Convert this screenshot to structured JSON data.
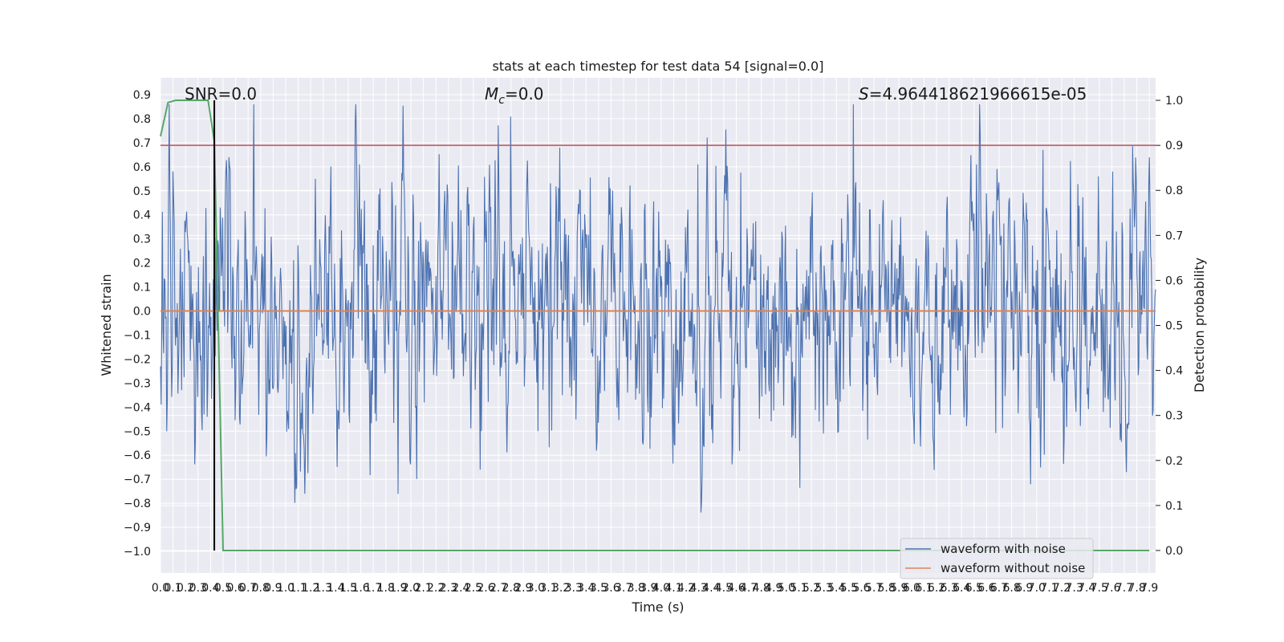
{
  "chart_data": {
    "type": "line",
    "title": "stats at each timestep for test data 54 [signal=0.0]",
    "xlabel": "Time (s)",
    "ylabel_left": "Whitened strain",
    "ylabel_right": "Detection probability",
    "xlim": [
      0.0,
      7.95
    ],
    "ylim_left": [
      -1.09,
      0.97
    ],
    "ylim_right": [
      -0.05,
      1.05
    ],
    "x_ticks": [
      "0.0",
      "0.1",
      "0.2",
      "0.3",
      "0.4",
      "0.5",
      "0.6",
      "0.7",
      "0.8",
      "0.9",
      "1.0",
      "1.1",
      "1.2",
      "1.3",
      "1.4",
      "1.5",
      "1.6",
      "1.7",
      "1.8",
      "1.9",
      "2.0",
      "2.1",
      "2.2",
      "2.3",
      "2.4",
      "2.5",
      "2.6",
      "2.7",
      "2.8",
      "2.9",
      "3.0",
      "3.1",
      "3.2",
      "3.3",
      "3.4",
      "3.5",
      "3.6",
      "3.7",
      "3.8",
      "3.9",
      "4.0",
      "4.1",
      "4.2",
      "4.3",
      "4.4",
      "4.5",
      "4.6",
      "4.7",
      "4.8",
      "4.9",
      "5.0",
      "5.1",
      "5.2",
      "5.3",
      "5.4",
      "5.5",
      "5.6",
      "5.7",
      "5.8",
      "5.9",
      "6.0",
      "6.1",
      "6.2",
      "6.3",
      "6.4",
      "6.5",
      "6.6",
      "6.7",
      "6.8",
      "6.9",
      "7.0",
      "7.1",
      "7.2",
      "7.3",
      "7.4",
      "7.5",
      "7.6",
      "7.7",
      "7.8",
      "7.9"
    ],
    "y_ticks_left": [
      "0.9",
      "0.8",
      "0.7",
      "0.6",
      "0.5",
      "0.4",
      "0.3",
      "0.2",
      "0.1",
      "0.0",
      "−0.1",
      "−0.2",
      "−0.3",
      "−0.4",
      "−0.5",
      "−0.6",
      "−0.7",
      "−0.8",
      "−0.9",
      "−1.0"
    ],
    "y_ticks_right": [
      "1.0",
      "0.9",
      "0.8",
      "0.7",
      "0.6",
      "0.5",
      "0.4",
      "0.3",
      "0.2",
      "0.1",
      "0.0"
    ],
    "annotations": {
      "snr": "SNR=0.0",
      "mc_symbol": "M",
      "mc_subscript": "c",
      "mc_value": "=0.0",
      "s_symbol": "S",
      "s_value": "=4.964418621966615e-05"
    },
    "series": [
      {
        "name": "waveform with noise",
        "color": "#4c72b0",
        "axis": "left",
        "description": "noise envelope, amplitude mostly within ±0.5"
      },
      {
        "name": "waveform without noise",
        "color": "#dd8452",
        "axis": "left",
        "values_constant": 0.0
      },
      {
        "name": "detection probability",
        "color": "#55a868",
        "axis": "right",
        "x": [
          0.0,
          0.06,
          0.12,
          0.2,
          0.3,
          0.38,
          0.43,
          0.5,
          7.9
        ],
        "y": [
          0.92,
          0.995,
          1.0,
          1.0,
          1.0,
          1.0,
          0.91,
          0.0,
          0.0
        ]
      },
      {
        "name": "threshold",
        "color": "#c44e52",
        "axis": "right",
        "values_constant": 0.9
      }
    ],
    "vertical_marker_x": 0.43,
    "legend_location": "lower right",
    "legend_entries": [
      "waveform with noise",
      "waveform without noise"
    ],
    "grid": true
  }
}
